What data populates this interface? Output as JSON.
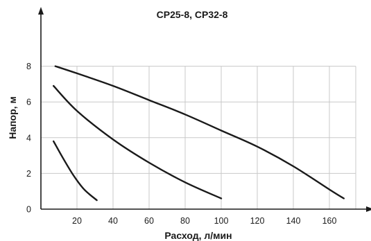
{
  "chart_data": {
    "type": "line",
    "title": "CP25-8, CP32-8",
    "xlabel": "Расход, л/мин",
    "ylabel": "Напор, м",
    "xlim": [
      0,
      175
    ],
    "ylim": [
      0,
      8.8
    ],
    "x_ticks": [
      20,
      40,
      60,
      80,
      100,
      120,
      140,
      160
    ],
    "y_ticks": [
      0,
      2,
      4,
      6,
      8
    ],
    "grid": true,
    "legend": "none",
    "colors": {
      "curve": "#1a1a1a",
      "grid": "#c8c8c8",
      "axis": "#1a1a1a"
    },
    "series": [
      {
        "x": [
          8,
          20,
          40,
          60,
          80,
          100,
          120,
          140,
          160,
          168
        ],
        "y": [
          8.0,
          7.6,
          6.9,
          6.1,
          5.3,
          4.4,
          3.5,
          2.4,
          1.1,
          0.6
        ]
      },
      {
        "x": [
          7,
          20,
          40,
          60,
          80,
          100
        ],
        "y": [
          6.9,
          5.5,
          3.9,
          2.6,
          1.5,
          0.6
        ]
      },
      {
        "x": [
          7,
          12,
          18,
          24,
          31
        ],
        "y": [
          3.8,
          2.9,
          1.9,
          1.1,
          0.5
        ]
      }
    ]
  }
}
